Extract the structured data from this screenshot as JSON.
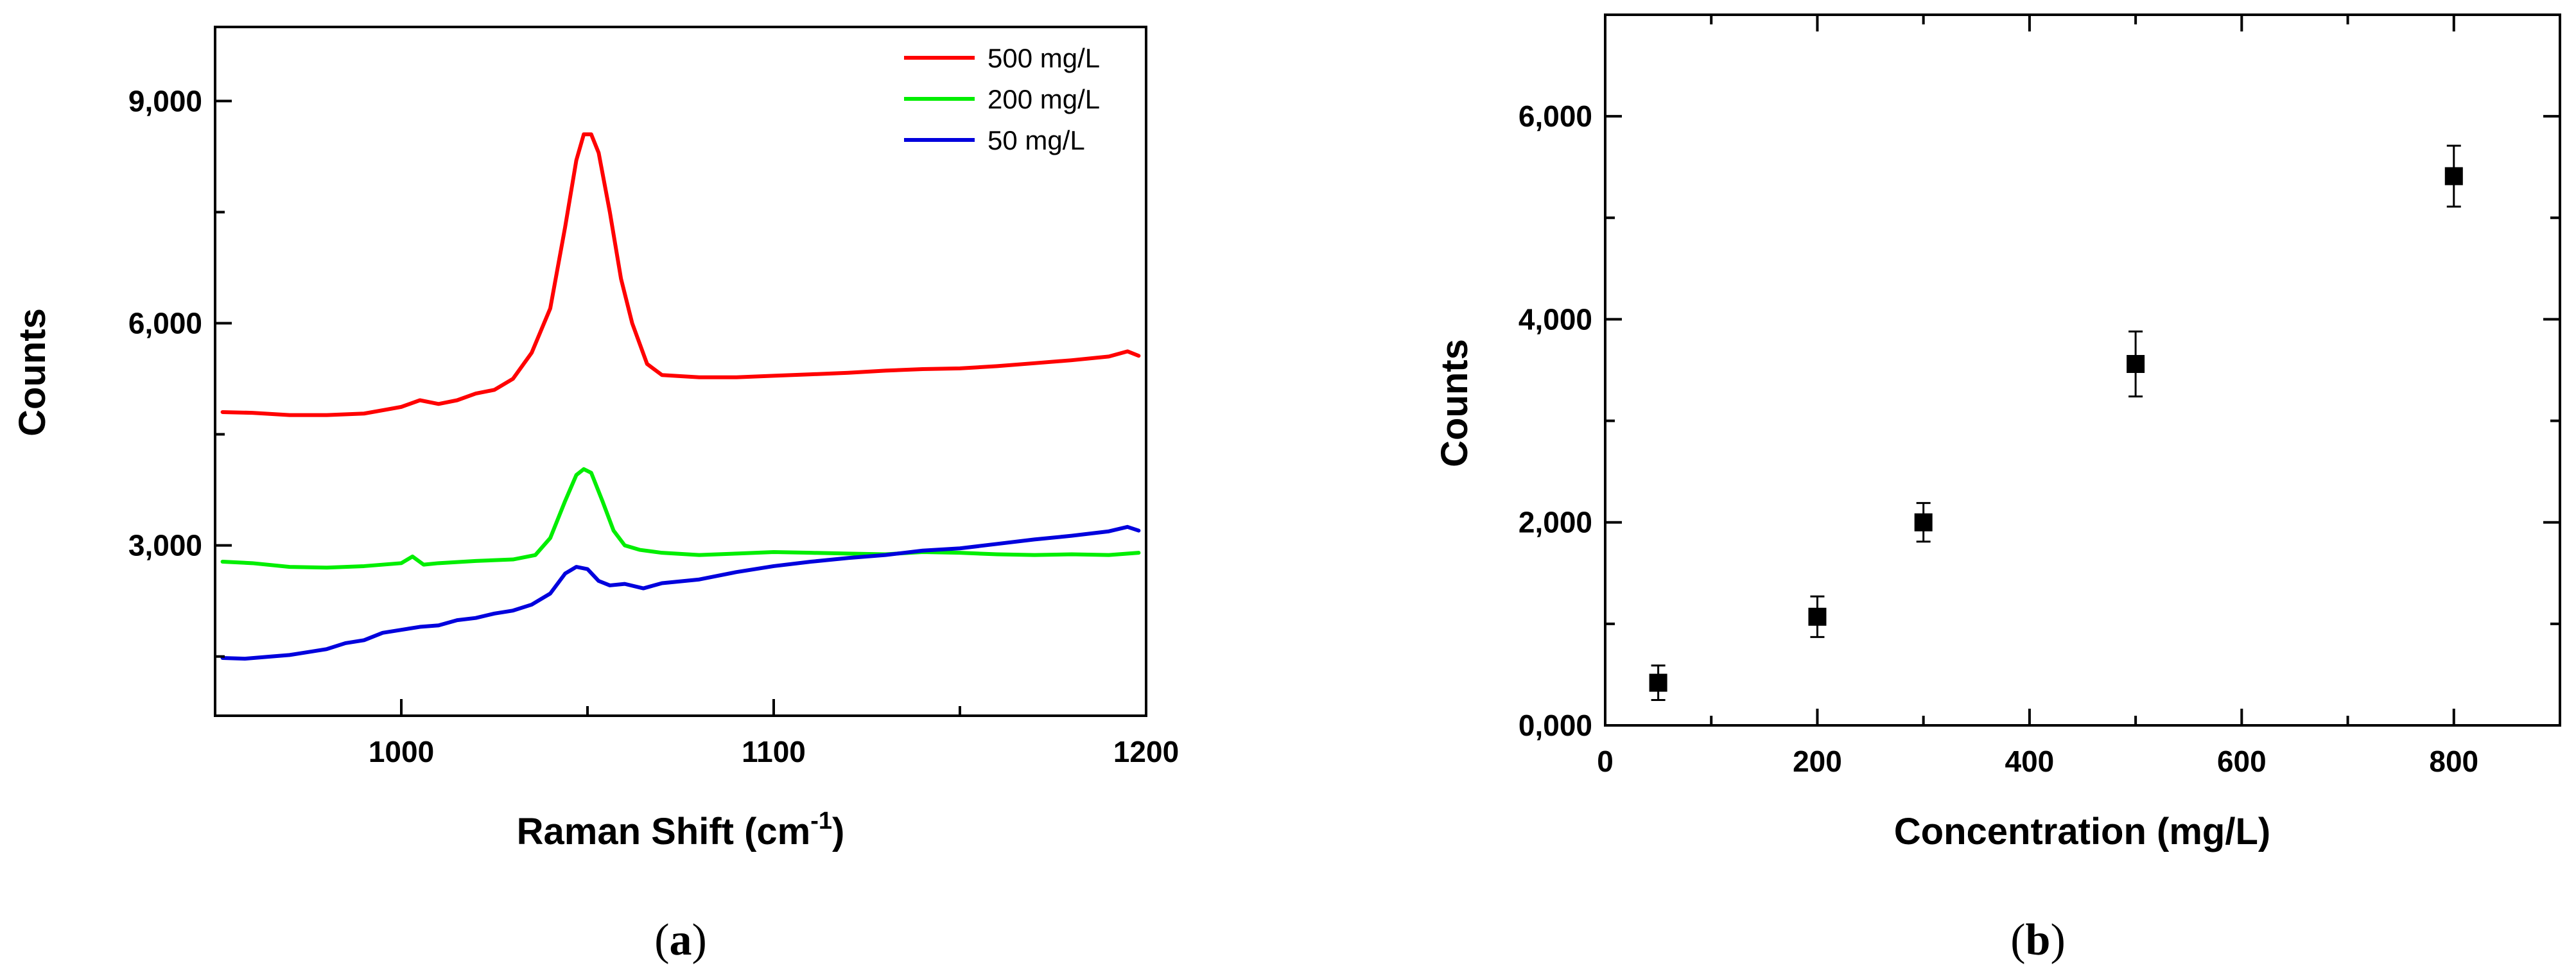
{
  "chart_data": [
    {
      "panel": "a",
      "type": "line",
      "title": "",
      "xlabel": "Raman Shift (cm",
      "xlabel_superscript": "-1",
      "xlabel_suffix": ")",
      "ylabel": "Counts",
      "xlim": [
        950,
        1200
      ],
      "ylim": [
        700,
        10000
      ],
      "xticks": [
        1000,
        1100,
        1200
      ],
      "xtick_labels": [
        "1000",
        "1100",
        "1200"
      ],
      "yticks": [
        1500,
        3000,
        4500,
        6000,
        7500,
        9000
      ],
      "ytick_labels": [
        "3,000",
        "6,000",
        "9,000"
      ],
      "ytick_label_values": [
        3000,
        6000,
        9000
      ],
      "legend_position": "top-right",
      "series": [
        {
          "name": "500 mg/L",
          "color": "#ff0000",
          "x": [
            952,
            960,
            970,
            980,
            990,
            1000,
            1005,
            1010,
            1015,
            1020,
            1025,
            1030,
            1035,
            1040,
            1044,
            1047,
            1049,
            1051,
            1053,
            1056,
            1059,
            1062,
            1066,
            1070,
            1080,
            1090,
            1100,
            1110,
            1120,
            1130,
            1140,
            1150,
            1160,
            1170,
            1180,
            1190,
            1195,
            1198
          ],
          "y": [
            4800,
            4790,
            4760,
            4760,
            4780,
            4870,
            4960,
            4910,
            4960,
            5050,
            5100,
            5250,
            5600,
            6200,
            7300,
            8200,
            8550,
            8550,
            8300,
            7500,
            6600,
            6000,
            5450,
            5300,
            5270,
            5270,
            5290,
            5310,
            5330,
            5360,
            5380,
            5390,
            5420,
            5460,
            5500,
            5550,
            5620,
            5560
          ]
        },
        {
          "name": "200 mg/L",
          "color": "#00ee00",
          "x": [
            952,
            960,
            970,
            980,
            990,
            1000,
            1003,
            1006,
            1010,
            1020,
            1030,
            1036,
            1040,
            1044,
            1047,
            1049,
            1051,
            1054,
            1057,
            1060,
            1064,
            1070,
            1080,
            1090,
            1100,
            1110,
            1120,
            1130,
            1140,
            1150,
            1160,
            1170,
            1180,
            1190,
            1198
          ],
          "y": [
            2780,
            2760,
            2710,
            2700,
            2720,
            2760,
            2850,
            2740,
            2760,
            2790,
            2810,
            2870,
            3100,
            3600,
            3950,
            4030,
            3980,
            3600,
            3200,
            3000,
            2940,
            2900,
            2870,
            2890,
            2910,
            2900,
            2890,
            2880,
            2910,
            2900,
            2880,
            2870,
            2880,
            2870,
            2900
          ]
        },
        {
          "name": "50 mg/L",
          "color": "#0000dd",
          "x": [
            952,
            958,
            965,
            970,
            975,
            980,
            985,
            990,
            995,
            1000,
            1005,
            1010,
            1015,
            1020,
            1025,
            1030,
            1035,
            1040,
            1044,
            1047,
            1050,
            1053,
            1056,
            1060,
            1065,
            1070,
            1080,
            1090,
            1100,
            1110,
            1120,
            1130,
            1140,
            1150,
            1160,
            1170,
            1180,
            1190,
            1195,
            1198
          ],
          "y": [
            1480,
            1470,
            1500,
            1520,
            1560,
            1600,
            1680,
            1720,
            1820,
            1860,
            1900,
            1920,
            1990,
            2020,
            2080,
            2120,
            2200,
            2350,
            2620,
            2710,
            2680,
            2520,
            2460,
            2480,
            2420,
            2490,
            2540,
            2640,
            2720,
            2780,
            2830,
            2870,
            2930,
            2960,
            3020,
            3080,
            3130,
            3190,
            3250,
            3200
          ]
        }
      ]
    },
    {
      "panel": "b",
      "type": "scatter",
      "title": "",
      "xlabel": "Concentration (mg/L)",
      "ylabel": "Counts",
      "xlim": [
        0,
        900
      ],
      "ylim": [
        0,
        7000
      ],
      "xticks": [
        0,
        200,
        400,
        600,
        800
      ],
      "xtick_labels": [
        "0",
        "200",
        "400",
        "600",
        "800"
      ],
      "yticks": [
        0,
        1000,
        2000,
        3000,
        4000,
        5000,
        6000,
        7000
      ],
      "ytick_labels": [
        "0,000",
        "2,000",
        "4,000",
        "6,000"
      ],
      "ytick_label_values": [
        0,
        2000,
        4000,
        6000
      ],
      "series": [
        {
          "name": "Counts",
          "color": "#000000",
          "x": [
            50,
            200,
            300,
            500,
            800
          ],
          "y": [
            420,
            1070,
            2000,
            3560,
            5410
          ],
          "error": [
            170,
            200,
            190,
            320,
            300
          ]
        }
      ]
    }
  ],
  "panel_labels": {
    "a_open": "(",
    "a_letter": "a",
    "a_close": ")",
    "b_open": "(",
    "b_letter": "b",
    "b_close": ")"
  }
}
